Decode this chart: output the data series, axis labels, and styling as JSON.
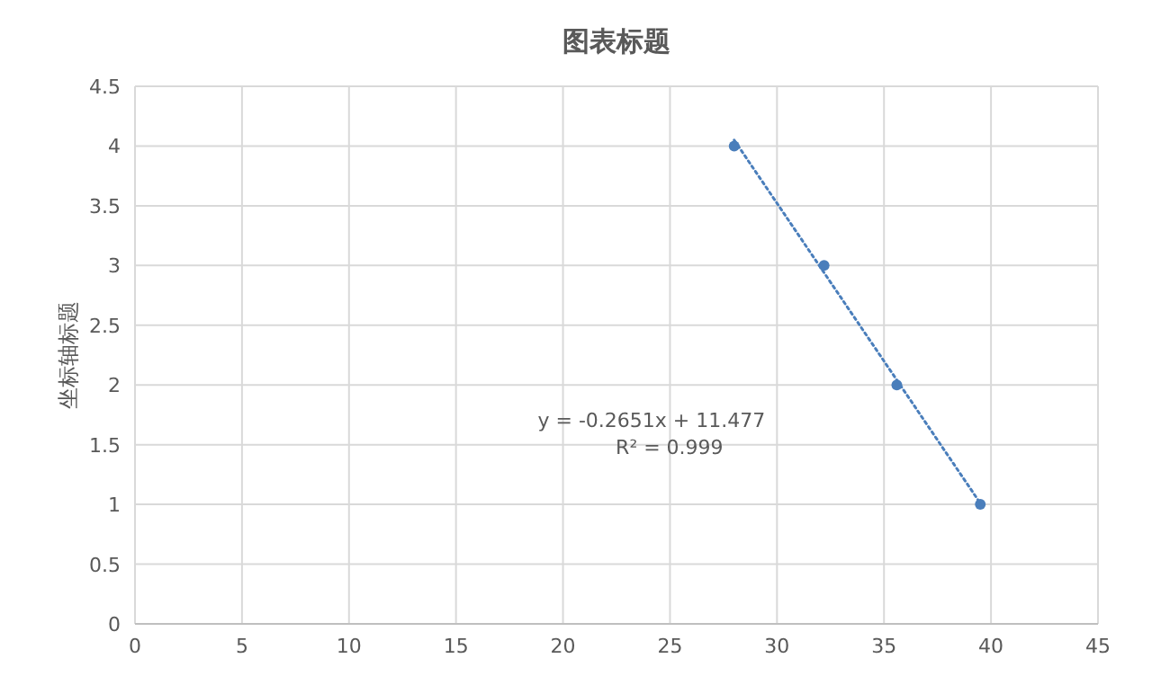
{
  "chart_data": {
    "type": "scatter",
    "title": "图表标题",
    "ylabel": "坐标轴标题",
    "x": [
      28,
      32.2,
      35.6,
      39.5
    ],
    "series": [
      {
        "color": "#4a7ebb",
        "values": [
          4,
          3,
          2,
          1
        ],
        "marker": "circle"
      },
      {
        "type": "line",
        "color": "#4a7ebb",
        "line_style": "dotted",
        "x": [
          28,
          39.5
        ],
        "values": [
          4.05,
          1.01
        ]
      }
    ],
    "xlim": [
      0,
      45
    ],
    "xticks": [
      0,
      5,
      10,
      15,
      20,
      25,
      30,
      35,
      40,
      45
    ],
    "ylim": [
      0,
      4.5
    ],
    "yticks": [
      0,
      0.5,
      1,
      1.5,
      2,
      2.5,
      3,
      3.5,
      4,
      4.5
    ],
    "grid": true,
    "annotations": [
      "y = -0.2651x + 11.477",
      "R² = 0.999"
    ]
  }
}
